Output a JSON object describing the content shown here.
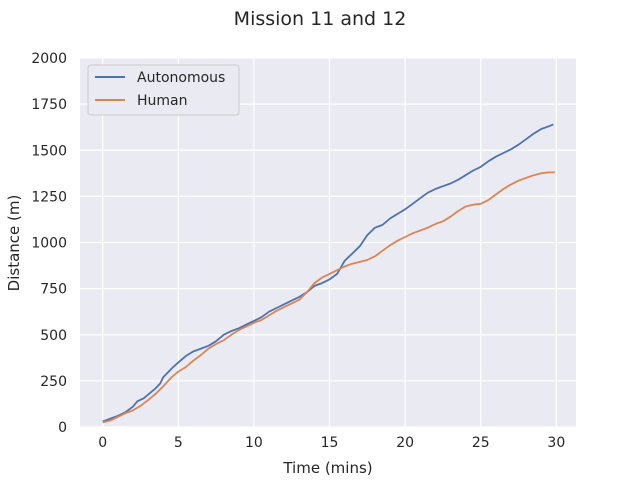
{
  "chart_data": {
    "type": "line",
    "title": "Mission 11 and 12",
    "xlabel": "Time (mins)",
    "ylabel": "Distance (m)",
    "xlim": [
      -1.5,
      31.3
    ],
    "ylim": [
      0,
      2000
    ],
    "x_ticks": [
      0,
      5,
      10,
      15,
      20,
      25,
      30
    ],
    "y_ticks": [
      0,
      250,
      500,
      750,
      1000,
      1250,
      1500,
      1750,
      2000
    ],
    "grid": true,
    "legend_position": "upper-left",
    "series": [
      {
        "name": "Autonomous",
        "color": "#4c72b0",
        "points": [
          [
            0,
            30
          ],
          [
            0.5,
            45
          ],
          [
            1,
            60
          ],
          [
            1.5,
            80
          ],
          [
            2,
            110
          ],
          [
            2.3,
            140
          ],
          [
            2.7,
            155
          ],
          [
            3,
            175
          ],
          [
            3.5,
            210
          ],
          [
            3.8,
            235
          ],
          [
            4,
            270
          ],
          [
            4.3,
            295
          ],
          [
            4.6,
            320
          ],
          [
            5,
            350
          ],
          [
            5.5,
            385
          ],
          [
            6,
            410
          ],
          [
            6.5,
            425
          ],
          [
            7,
            440
          ],
          [
            7.5,
            465
          ],
          [
            8,
            500
          ],
          [
            8.5,
            520
          ],
          [
            9,
            535
          ],
          [
            9.5,
            555
          ],
          [
            10,
            575
          ],
          [
            10.5,
            595
          ],
          [
            11,
            625
          ],
          [
            11.5,
            645
          ],
          [
            12,
            665
          ],
          [
            12.5,
            685
          ],
          [
            13,
            705
          ],
          [
            13.5,
            730
          ],
          [
            14,
            765
          ],
          [
            14.5,
            780
          ],
          [
            15,
            800
          ],
          [
            15.5,
            830
          ],
          [
            16,
            900
          ],
          [
            16.5,
            940
          ],
          [
            17,
            980
          ],
          [
            17.5,
            1040
          ],
          [
            18,
            1080
          ],
          [
            18.5,
            1095
          ],
          [
            19,
            1130
          ],
          [
            19.5,
            1155
          ],
          [
            20,
            1180
          ],
          [
            20.5,
            1210
          ],
          [
            21,
            1240
          ],
          [
            21.5,
            1270
          ],
          [
            22,
            1290
          ],
          [
            22.5,
            1305
          ],
          [
            23,
            1320
          ],
          [
            23.5,
            1340
          ],
          [
            24,
            1365
          ],
          [
            24.5,
            1390
          ],
          [
            25,
            1410
          ],
          [
            25.5,
            1440
          ],
          [
            26,
            1465
          ],
          [
            26.5,
            1485
          ],
          [
            27,
            1505
          ],
          [
            27.5,
            1530
          ],
          [
            28,
            1560
          ],
          [
            28.5,
            1590
          ],
          [
            29,
            1615
          ],
          [
            29.5,
            1630
          ],
          [
            29.8,
            1640
          ]
        ]
      },
      {
        "name": "Human",
        "color": "#dd8452",
        "points": [
          [
            0,
            25
          ],
          [
            0.5,
            35
          ],
          [
            1,
            55
          ],
          [
            1.5,
            75
          ],
          [
            2,
            90
          ],
          [
            2.5,
            115
          ],
          [
            3,
            145
          ],
          [
            3.5,
            180
          ],
          [
            4,
            220
          ],
          [
            4.5,
            265
          ],
          [
            5,
            300
          ],
          [
            5.5,
            325
          ],
          [
            6,
            360
          ],
          [
            6.5,
            390
          ],
          [
            7,
            425
          ],
          [
            7.5,
            450
          ],
          [
            8,
            470
          ],
          [
            8.5,
            500
          ],
          [
            9,
            525
          ],
          [
            9.5,
            545
          ],
          [
            10,
            565
          ],
          [
            10.5,
            580
          ],
          [
            11,
            605
          ],
          [
            11.5,
            630
          ],
          [
            12,
            650
          ],
          [
            12.5,
            670
          ],
          [
            13,
            690
          ],
          [
            13.5,
            730
          ],
          [
            14,
            780
          ],
          [
            14.5,
            810
          ],
          [
            15,
            830
          ],
          [
            15.5,
            850
          ],
          [
            16,
            870
          ],
          [
            16.5,
            885
          ],
          [
            17,
            895
          ],
          [
            17.5,
            905
          ],
          [
            18,
            925
          ],
          [
            18.5,
            955
          ],
          [
            19,
            985
          ],
          [
            19.5,
            1010
          ],
          [
            20,
            1030
          ],
          [
            20.5,
            1050
          ],
          [
            21,
            1065
          ],
          [
            21.5,
            1080
          ],
          [
            22,
            1100
          ],
          [
            22.5,
            1115
          ],
          [
            23,
            1140
          ],
          [
            23.5,
            1170
          ],
          [
            24,
            1195
          ],
          [
            24.5,
            1205
          ],
          [
            25,
            1210
          ],
          [
            25.5,
            1230
          ],
          [
            26,
            1260
          ],
          [
            26.5,
            1290
          ],
          [
            27,
            1315
          ],
          [
            27.5,
            1335
          ],
          [
            28,
            1350
          ],
          [
            28.5,
            1365
          ],
          [
            29,
            1375
          ],
          [
            29.5,
            1380
          ],
          [
            29.9,
            1380
          ]
        ]
      }
    ]
  }
}
